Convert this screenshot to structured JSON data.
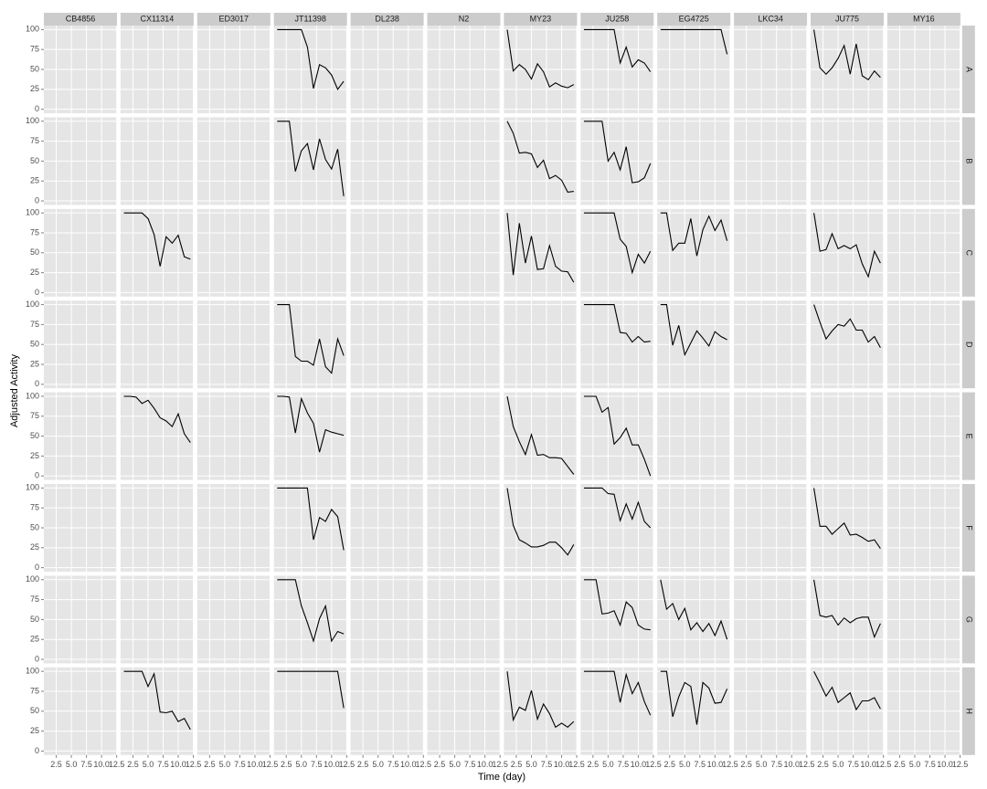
{
  "chart_data": {
    "type": "line",
    "xlabel": "Time (day)",
    "ylabel": "Adjusted Activity",
    "columns": [
      "CB4856",
      "CX11314",
      "ED3017",
      "JT11398",
      "DL238",
      "N2",
      "MY23",
      "JU258",
      "EG4725",
      "LKC34",
      "JU775",
      "MY16"
    ],
    "rows": [
      "A",
      "B",
      "C",
      "D",
      "E",
      "F",
      "G",
      "H"
    ],
    "x": [
      1,
      2,
      3,
      4,
      5,
      6,
      7,
      8,
      9,
      10,
      11,
      12
    ],
    "xlim": [
      0.45,
      12.55
    ],
    "xticks": [
      2.5,
      {
        "value": 5,
        "label": "5.0"
      },
      7.5,
      {
        "value": 10,
        "label": "10.0"
      },
      12.5
    ],
    "ylim": [
      -5,
      105
    ],
    "yticks": [
      0,
      25,
      50,
      75,
      100
    ],
    "color": "#000000",
    "grid": true,
    "values": [
      [
        null,
        null,
        null,
        [
          100,
          100,
          100,
          100,
          100,
          78,
          26,
          56,
          52,
          43,
          25,
          35
        ],
        null,
        null,
        [
          100,
          48,
          56,
          50,
          38,
          57,
          47,
          28,
          33,
          29,
          27,
          31
        ],
        [
          100,
          100,
          100,
          100,
          100,
          100,
          58,
          78,
          53,
          62,
          58,
          47
        ],
        [
          100,
          100,
          100,
          100,
          100,
          100,
          100,
          100,
          100,
          100,
          100,
          69
        ],
        null,
        [
          100,
          52,
          44,
          52,
          64,
          80,
          44,
          82,
          42,
          37,
          48,
          40
        ],
        null
      ],
      [
        null,
        null,
        null,
        [
          100,
          100,
          100,
          37,
          63,
          72,
          39,
          78,
          52,
          40,
          65,
          6
        ],
        null,
        null,
        [
          100,
          85,
          60,
          61,
          59,
          42,
          51,
          28,
          32,
          26,
          11,
          12
        ],
        [
          100,
          100,
          100,
          100,
          50,
          61,
          39,
          68,
          23,
          24,
          29,
          47
        ],
        null,
        null,
        null,
        null
      ],
      [
        null,
        [
          100,
          100,
          100,
          100,
          93,
          73,
          33,
          70,
          62,
          72,
          45,
          42
        ],
        null,
        null,
        null,
        null,
        [
          100,
          22,
          87,
          37,
          71,
          29,
          30,
          59,
          33,
          27,
          26,
          13
        ],
        [
          100,
          100,
          100,
          100,
          100,
          100,
          67,
          58,
          25,
          48,
          37,
          52
        ],
        [
          100,
          100,
          53,
          62,
          62,
          93,
          46,
          79,
          96,
          78,
          91,
          65
        ],
        null,
        [
          100,
          52,
          54,
          74,
          55,
          59,
          55,
          60,
          36,
          20,
          52,
          37
        ],
        null
      ],
      [
        null,
        null,
        null,
        [
          100,
          100,
          100,
          35,
          29,
          29,
          24,
          57,
          22,
          14,
          57,
          36
        ],
        null,
        null,
        null,
        [
          100,
          100,
          100,
          100,
          100,
          100,
          65,
          64,
          53,
          60,
          53,
          54
        ],
        [
          100,
          100,
          49,
          74,
          37,
          52,
          67,
          58,
          48,
          66,
          60,
          56
        ],
        null,
        [
          100,
          78,
          57,
          67,
          75,
          73,
          82,
          68,
          68,
          53,
          60,
          46
        ],
        null
      ],
      [
        null,
        [
          100,
          100,
          99,
          91,
          95,
          85,
          73,
          69,
          62,
          78,
          53,
          42
        ],
        null,
        [
          100,
          100,
          99,
          54,
          97,
          79,
          66,
          30,
          58,
          55,
          53,
          51
        ],
        null,
        null,
        [
          100,
          62,
          43,
          27,
          52,
          26,
          27,
          23,
          23,
          22,
          12,
          2
        ],
        [
          100,
          100,
          100,
          80,
          86,
          40,
          48,
          60,
          39,
          39,
          21,
          0
        ],
        null,
        null,
        null,
        null
      ],
      [
        null,
        null,
        null,
        [
          100,
          100,
          100,
          100,
          100,
          100,
          35,
          63,
          58,
          73,
          64,
          22
        ],
        null,
        null,
        [
          100,
          53,
          35,
          31,
          26,
          26,
          28,
          32,
          32,
          25,
          16,
          29
        ],
        [
          100,
          100,
          100,
          100,
          93,
          92,
          59,
          80,
          61,
          82,
          58,
          50
        ],
        null,
        null,
        [
          100,
          52,
          52,
          42,
          49,
          56,
          41,
          42,
          38,
          33,
          35,
          24
        ],
        null
      ],
      [
        null,
        null,
        null,
        [
          100,
          100,
          100,
          100,
          67,
          46,
          23,
          51,
          67,
          23,
          35,
          32
        ],
        null,
        null,
        null,
        [
          100,
          100,
          100,
          57,
          58,
          61,
          43,
          72,
          65,
          43,
          38,
          37
        ],
        [
          100,
          63,
          70,
          50,
          64,
          37,
          46,
          35,
          45,
          30,
          48,
          25
        ],
        null,
        [
          100,
          55,
          53,
          55,
          43,
          52,
          46,
          51,
          53,
          53,
          28,
          45
        ],
        null
      ],
      [
        null,
        [
          100,
          100,
          100,
          100,
          81,
          97,
          49,
          48,
          50,
          37,
          41,
          27
        ],
        null,
        [
          100,
          100,
          100,
          100,
          100,
          100,
          100,
          100,
          100,
          100,
          100,
          54
        ],
        null,
        null,
        [
          100,
          39,
          55,
          51,
          76,
          40,
          59,
          47,
          30,
          35,
          30,
          37
        ],
        [
          100,
          100,
          100,
          100,
          100,
          100,
          61,
          96,
          72,
          86,
          62,
          45
        ],
        [
          100,
          100,
          43,
          68,
          86,
          81,
          33,
          86,
          79,
          60,
          61,
          78
        ],
        null,
        [
          100,
          85,
          69,
          80,
          61,
          67,
          73,
          52,
          63,
          63,
          67,
          53
        ],
        null
      ]
    ]
  }
}
